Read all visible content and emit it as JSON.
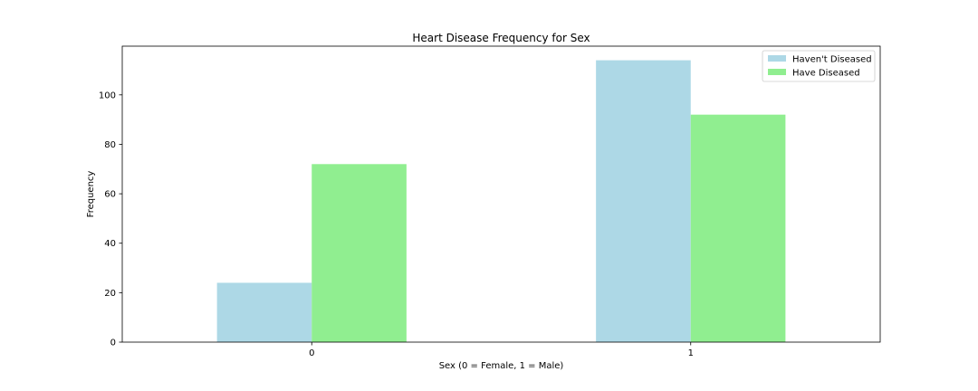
{
  "chart_data": {
    "type": "bar",
    "title": "Heart Disease Frequency for Sex",
    "xlabel": "Sex (0 = Female, 1 = Male)",
    "ylabel": "Frequency",
    "categories": [
      "0",
      "1"
    ],
    "series": [
      {
        "name": "Haven't Diseased",
        "values": [
          24,
          114
        ],
        "color": "#add8e6"
      },
      {
        "name": "Have Diseased",
        "values": [
          72,
          92
        ],
        "color": "#90ee90"
      }
    ],
    "ylim": [
      0,
      119.7
    ],
    "yticks": [
      0,
      20,
      40,
      60,
      80,
      100
    ],
    "grid": false,
    "legend": "top-right"
  }
}
